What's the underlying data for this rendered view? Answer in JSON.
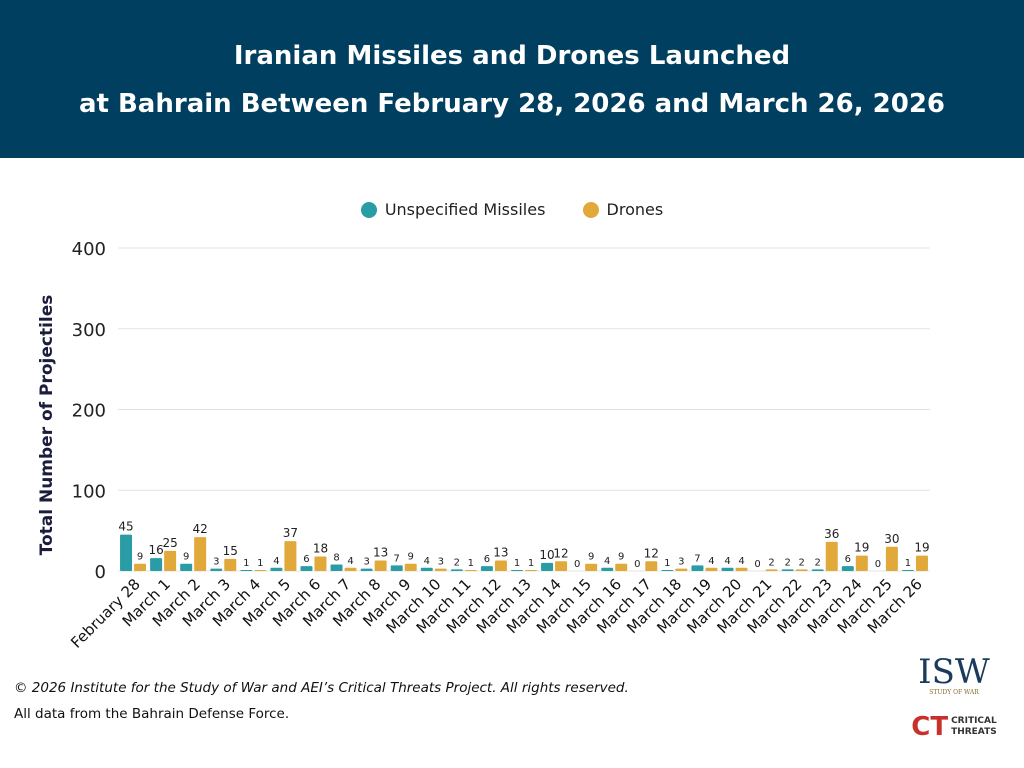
{
  "header": {
    "line1": "Iranian Missiles and Drones Launched",
    "line2": "at Bahrain Between February 28, 2026 and March 26, 2026"
  },
  "footer": {
    "copyright": "© 2026 Institute for the Study of War and AEI’s Critical Threats Project. All rights reserved.",
    "source": "All data from the Bahrain Defense Force."
  },
  "logos": {
    "isw": "ISW",
    "isw_sub": "INSTITUTE FOR THE STUDY OF WAR",
    "ct": "CT",
    "ct_text": "CRITICAL THREATS"
  },
  "chart_data": {
    "type": "bar",
    "title": "",
    "xlabel": "",
    "ylabel": "Total Number of Projectiles",
    "ylim": [
      0,
      400
    ],
    "yticks": [
      0,
      100,
      200,
      300,
      400
    ],
    "grid": true,
    "legend": "top",
    "categories": [
      "February 28",
      "March 1",
      "March 2",
      "March 3",
      "March 4",
      "March 5",
      "March 6",
      "March 7",
      "March 8",
      "March 9",
      "March 10",
      "March 11",
      "March 12",
      "March 13",
      "March 14",
      "March 15",
      "March 16",
      "March 17",
      "March 18",
      "March 19",
      "March 20",
      "March 21",
      "March 22",
      "March 23",
      "March 24",
      "March 25",
      "March 26"
    ],
    "series": [
      {
        "name": "Unspecified Missiles",
        "color": "#2a9ca6",
        "values": [
          45,
          16,
          9,
          3,
          1,
          4,
          6,
          8,
          3,
          7,
          4,
          2,
          6,
          1,
          10,
          0,
          4,
          0,
          1,
          7,
          4,
          0,
          2,
          2,
          6,
          0,
          1
        ]
      },
      {
        "name": "Drones",
        "color": "#e0a93a",
        "values": [
          9,
          25,
          42,
          15,
          1,
          37,
          18,
          4,
          13,
          9,
          3,
          1,
          13,
          1,
          12,
          9,
          9,
          12,
          3,
          4,
          4,
          2,
          2,
          36,
          19,
          30,
          19
        ]
      }
    ]
  }
}
